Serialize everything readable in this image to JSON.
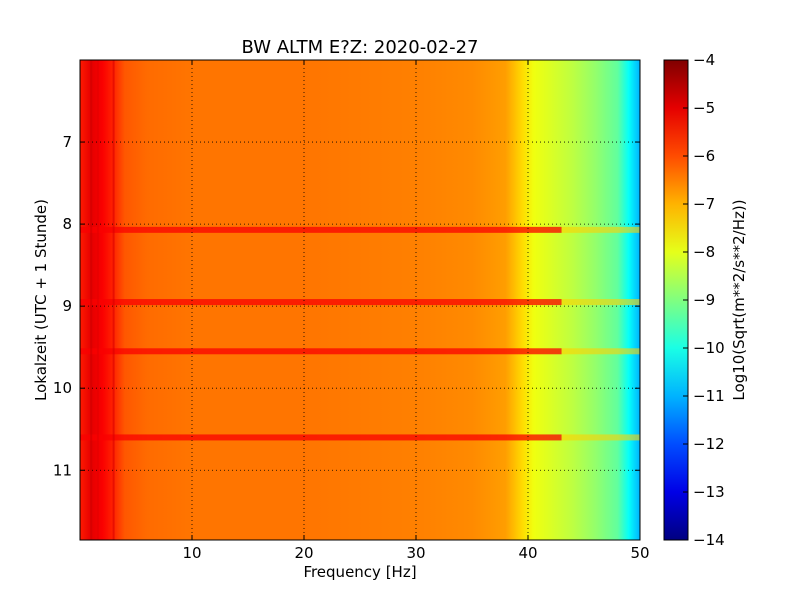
{
  "chart_data": {
    "type": "heatmap",
    "title": "BW ALTM E?Z: 2020-02-27",
    "xlabel": "Frequency [Hz]",
    "ylabel": "Lokalzeit (UTC + 1 Stunde)",
    "xlim": [
      0,
      50
    ],
    "ylim": [
      11.85,
      6.0
    ],
    "y_inverted": true,
    "xticks": [
      10,
      20,
      30,
      40,
      50
    ],
    "yticks": [
      7,
      8,
      9,
      10,
      11
    ],
    "grid": true,
    "colormap": "jet",
    "colorbar": {
      "label": "Log10(Sqrt(m**2/s**2/Hz))",
      "range": [
        -14,
        -4
      ],
      "ticks": [
        -4,
        -5,
        -6,
        -7,
        -8,
        -9,
        -10,
        -11,
        -12,
        -13,
        -14
      ]
    },
    "spectrum_profile": {
      "frequency_hz": [
        0,
        1,
        2,
        3,
        4,
        6,
        10,
        20,
        30,
        35,
        38,
        39.5,
        40.5,
        42,
        44,
        46,
        48,
        49,
        50
      ],
      "log10_amplitude": [
        -5.5,
        -5.0,
        -5.2,
        -5.6,
        -6.1,
        -6.3,
        -6.4,
        -6.4,
        -6.5,
        -6.6,
        -6.8,
        -7.4,
        -7.9,
        -8.1,
        -8.4,
        -8.8,
        -9.3,
        -10.2,
        -11.0
      ]
    },
    "high_amplitude_bands_hours": [
      8.07,
      8.95,
      9.55,
      10.6
    ]
  },
  "colors": {
    "background": "#ffffff",
    "axes_edge": "#000000",
    "grid": "#000000"
  }
}
